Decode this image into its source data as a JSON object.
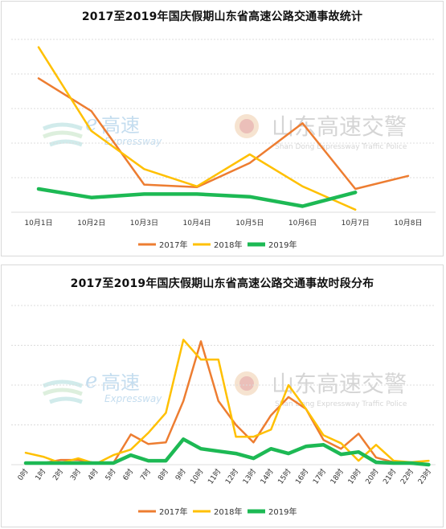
{
  "colors": {
    "2017": "#ED7D31",
    "2018": "#FFC000",
    "2019": "#1DB954",
    "grid": "#dcdcdc",
    "axis_text": "#333333"
  },
  "watermarks": {
    "left_brand": "高速",
    "left_sub": "Expressway",
    "right_brand": "山东高速交警",
    "right_sub": "Shan Dong Expressway Traffic Police"
  },
  "chart_data": [
    {
      "type": "line",
      "title": "2017至2019年国庆假期山东省高速公路交通事故统计",
      "categories": [
        "10月1日",
        "10月2日",
        "10月3日",
        "10月4日",
        "10月5日",
        "10月6日",
        "10月7日",
        "10月8日"
      ],
      "series": [
        {
          "name": "2017年",
          "values": [
            155,
            117,
            32,
            29,
            57,
            103,
            27,
            42
          ]
        },
        {
          "name": "2018年",
          "values": [
            191,
            94,
            50,
            30,
            67,
            30,
            3,
            null
          ]
        },
        {
          "name": "2019年",
          "values": [
            27,
            17,
            21,
            21,
            18,
            7,
            23,
            null
          ]
        }
      ],
      "ylim": [
        0,
        200
      ],
      "grid": true,
      "legend": "bottom-center"
    },
    {
      "type": "line",
      "title": "2017至2019年国庆假期山东省高速公路交通事故时段分布",
      "categories": [
        "0时",
        "1时",
        "2时",
        "3时",
        "4时",
        "5时",
        "6时",
        "7时",
        "8时",
        "9时",
        "10时",
        "11时",
        "12时",
        "13时",
        "14时",
        "15时",
        "16时",
        "17时",
        "18时",
        "19时",
        "20时",
        "21时",
        "22时",
        "23时"
      ],
      "series": [
        {
          "name": "2017年",
          "values": [
            2,
            2,
            6,
            6,
            2,
            2,
            38,
            26,
            28,
            80,
            155,
            80,
            50,
            28,
            62,
            85,
            70,
            31,
            20,
            39,
            9,
            3,
            1,
            0
          ]
        },
        {
          "name": "2018年",
          "values": [
            15,
            10,
            2,
            8,
            1,
            12,
            19,
            40,
            65,
            157,
            132,
            132,
            35,
            35,
            44,
            100,
            70,
            37,
            27,
            5,
            25,
            5,
            3,
            5
          ]
        },
        {
          "name": "2019年",
          "values": [
            2,
            2,
            2,
            2,
            2,
            2,
            12,
            5,
            5,
            32,
            20,
            17,
            14,
            8,
            20,
            14,
            23,
            25,
            13,
            16,
            3,
            2,
            2,
            0
          ]
        }
      ],
      "ylim": [
        0,
        200
      ],
      "grid": true,
      "legend": "bottom-center"
    }
  ]
}
